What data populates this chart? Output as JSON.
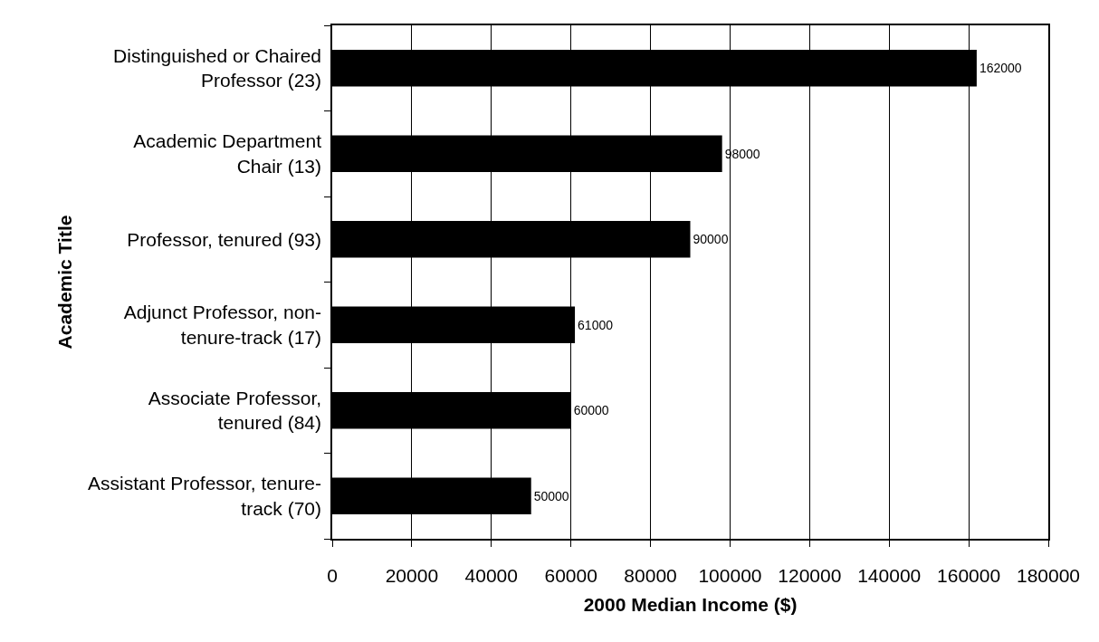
{
  "chart_data": {
    "type": "bar",
    "orientation": "horizontal",
    "xlabel": "2000 Median Income ($)",
    "ylabel": "Academic Title",
    "categories": [
      "Distinguished or Chaired\nProfessor (23)",
      "Academic Department\nChair (13)",
      "Professor, tenured (93)",
      "Adjunct Professor, non-\ntenure-track (17)",
      "Associate Professor,\ntenured (84)",
      "Assistant Professor, tenure-\ntrack (70)"
    ],
    "values": [
      162000,
      98000,
      90000,
      61000,
      60000,
      50000
    ],
    "color": "#000000",
    "xlim": [
      0,
      180000
    ],
    "xticks": [
      0,
      20000,
      40000,
      60000,
      80000,
      100000,
      120000,
      140000,
      160000,
      180000
    ],
    "grid": "x",
    "data_labels": true
  }
}
